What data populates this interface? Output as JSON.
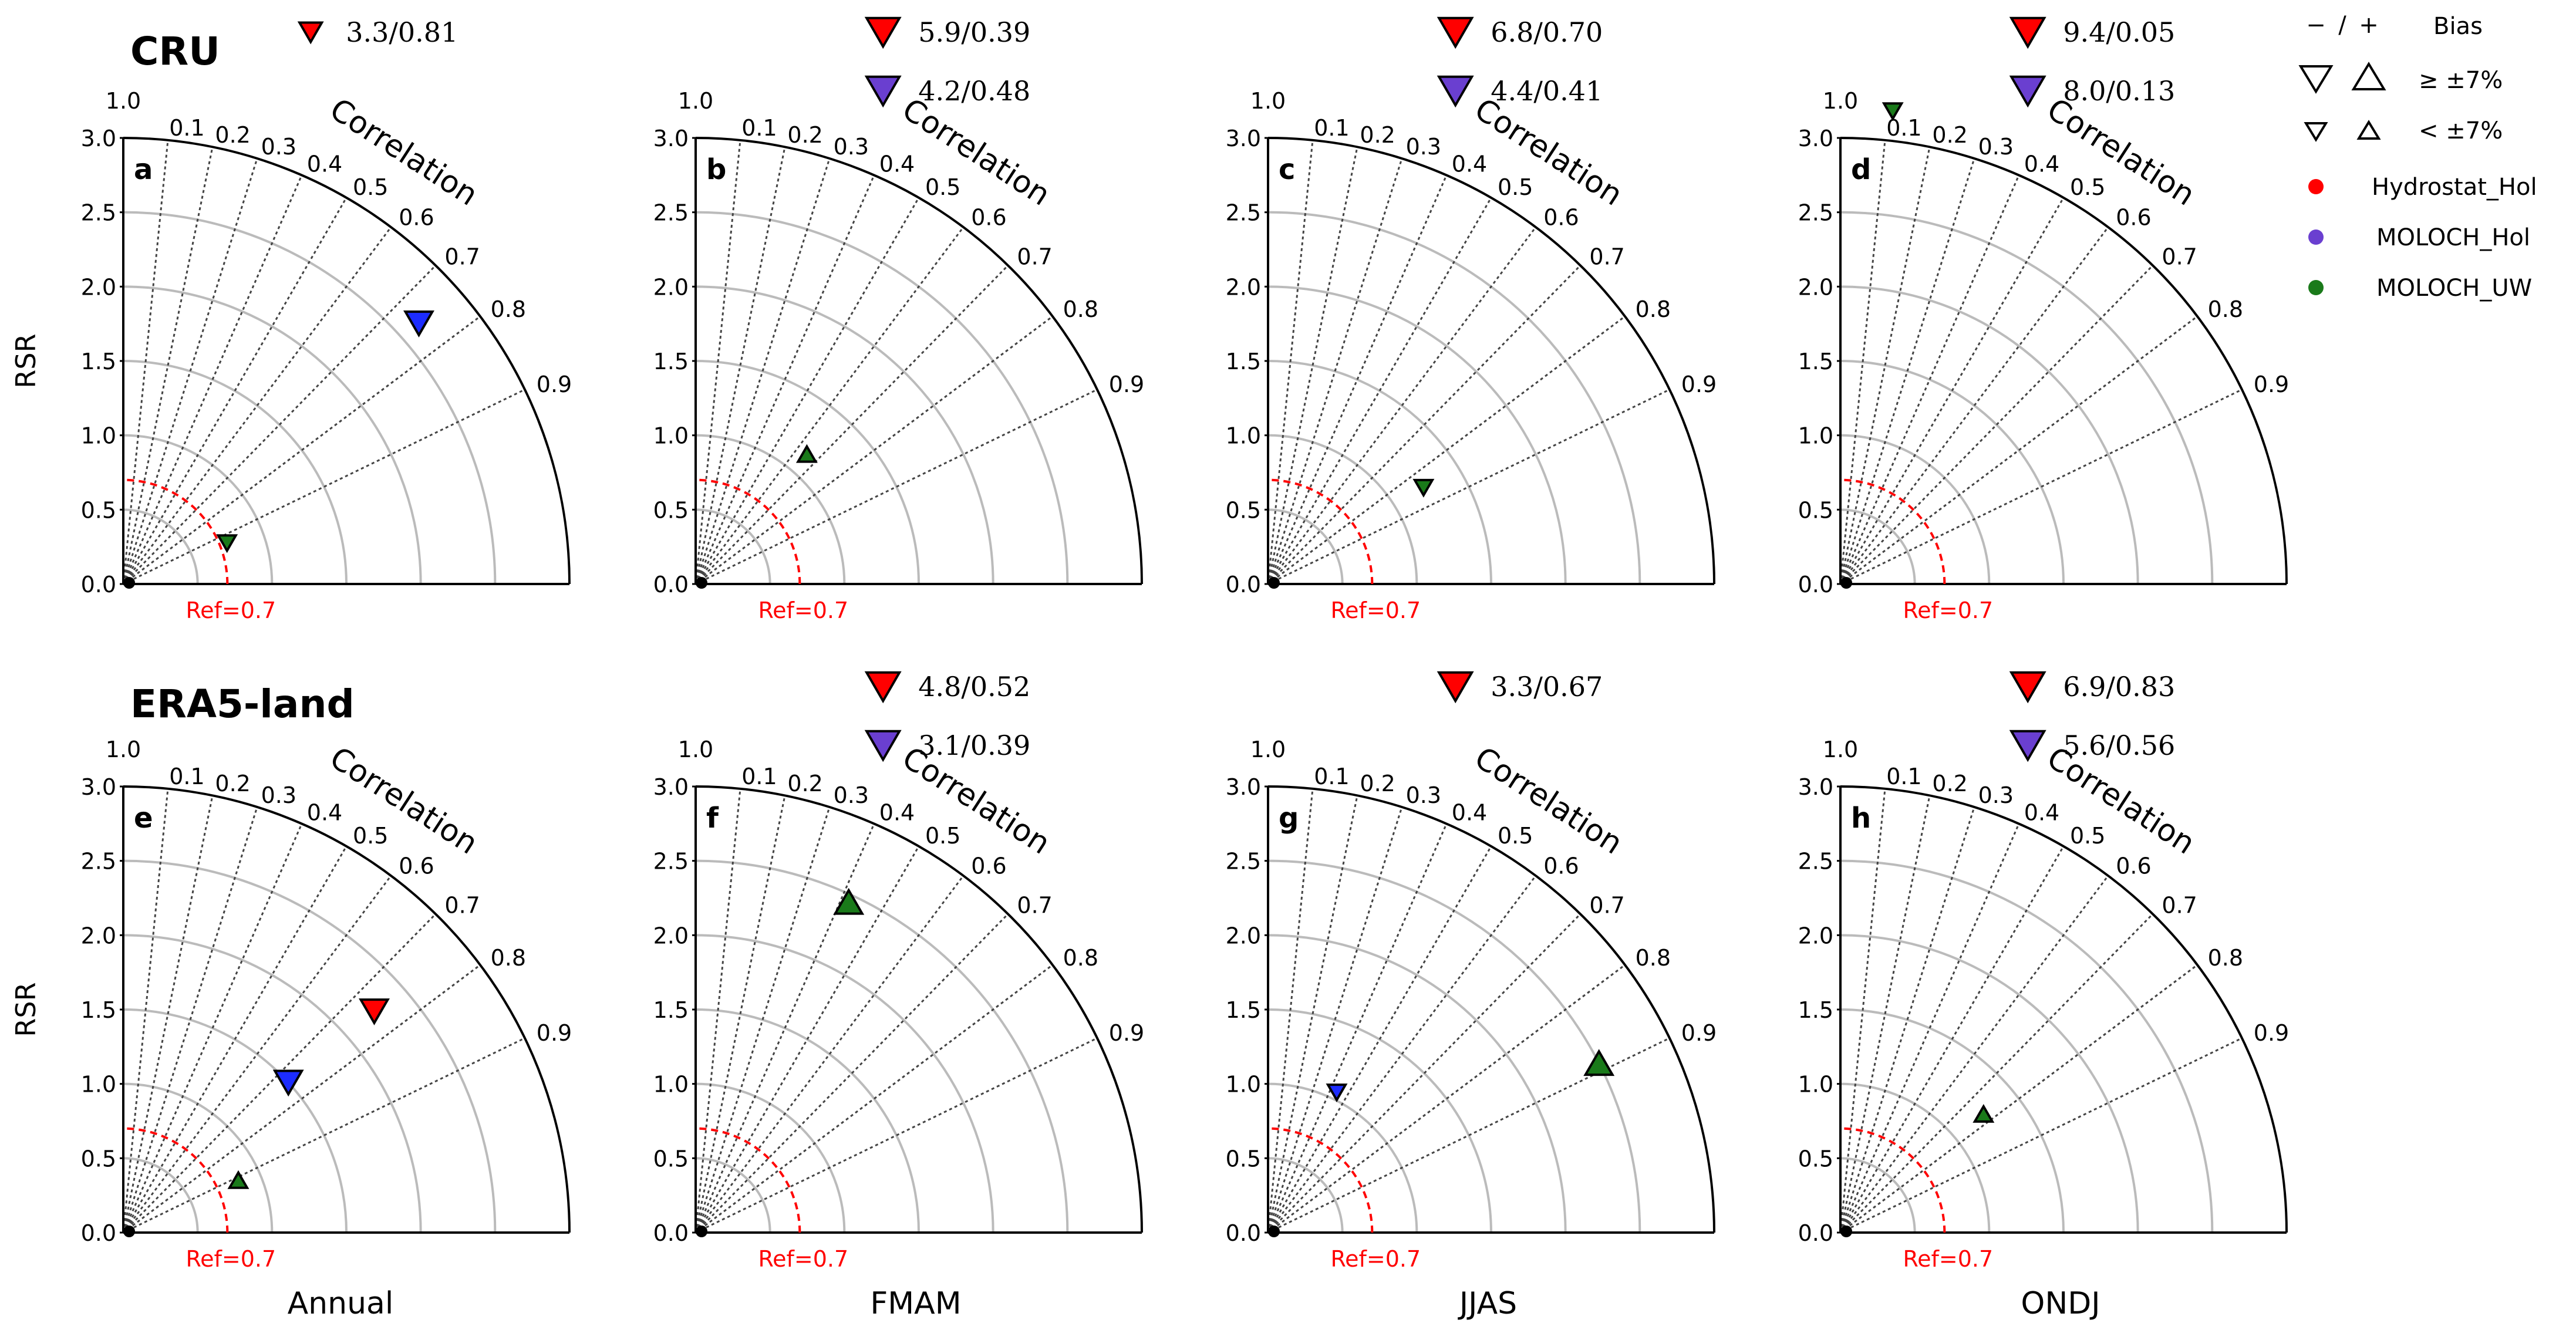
{
  "colors": {
    "hydrostat": "#ff0000",
    "moloch_hol": "#6a3fd0",
    "moloch_uw": "#1a7a1a",
    "blue_marker": "#1c2cff",
    "ref": "#ff0000",
    "grid": "#bbbbbb",
    "ray": "#444444",
    "frame": "#000000"
  },
  "common": {
    "rsr_label": "RSR",
    "correlation_label": "Correlation",
    "corner_top_label": "1.0",
    "ref_label": "Ref=0.7",
    "ref_value": 0.7,
    "rmax": 3.0,
    "r_ticks": [
      0.0,
      0.5,
      1.0,
      1.5,
      2.0,
      2.5,
      3.0
    ],
    "r_tick_labels": [
      "0.0",
      "0.5",
      "1.0",
      "1.5",
      "2.0",
      "2.5",
      "3.0"
    ],
    "corr_ticks": [
      0.9,
      0.8,
      0.7,
      0.6,
      0.5,
      0.4,
      0.3,
      0.2,
      0.1
    ],
    "corr_tick_labels": [
      "0.9",
      "0.8",
      "0.7",
      "0.6",
      "0.5",
      "0.4",
      "0.3",
      "0.2",
      "0.1"
    ]
  },
  "row_titles": [
    "CRU",
    "ERA5-land"
  ],
  "column_titles": [
    "Annual",
    "FMAM",
    "JJAS",
    "ONDJ"
  ],
  "legend": {
    "header_minus": "−",
    "header_slash": "/",
    "header_plus": "+",
    "header_bias": "Bias",
    "large_label": "≥ ±7%",
    "small_label": "< ±7%",
    "entries": [
      {
        "label": "Hydrostat_Hol",
        "color_key": "hydrostat"
      },
      {
        "label": "MOLOCH_Hol",
        "color_key": "moloch_hol"
      },
      {
        "label": "MOLOCH_UW",
        "color_key": "moloch_uw"
      }
    ]
  },
  "chart_data": [
    {
      "type": "scatter",
      "panel": "a",
      "row": 0,
      "col": 0,
      "outliers": [
        {
          "label": "3.3/0.81",
          "color_key": "hydrostat",
          "size": "small"
        }
      ],
      "points": [
        {
          "model": "MOLOCH_Hol",
          "color_key": "blue_marker",
          "corr": 0.75,
          "rsr": 2.65,
          "dir": "down",
          "size": "large"
        },
        {
          "model": "MOLOCH_UW",
          "color_key": "moloch_uw",
          "corr": 0.93,
          "rsr": 0.75,
          "dir": "down",
          "size": "small"
        }
      ]
    },
    {
      "type": "scatter",
      "panel": "b",
      "row": 0,
      "col": 1,
      "outliers": [
        {
          "label": "5.9/0.39",
          "color_key": "hydrostat",
          "size": "large"
        },
        {
          "label": "4.2/0.48",
          "color_key": "moloch_hol",
          "size": "large"
        }
      ],
      "points": [
        {
          "model": "MOLOCH_UW",
          "color_key": "moloch_uw",
          "corr": 0.65,
          "rsr": 1.15,
          "dir": "up",
          "size": "small"
        }
      ]
    },
    {
      "type": "scatter",
      "panel": "c",
      "row": 0,
      "col": 2,
      "outliers": [
        {
          "label": "6.8/0.70",
          "color_key": "hydrostat",
          "size": "large"
        },
        {
          "label": "4.4/0.41",
          "color_key": "moloch_hol",
          "size": "large"
        }
      ],
      "points": [
        {
          "model": "MOLOCH_UW",
          "color_key": "moloch_uw",
          "corr": 0.85,
          "rsr": 1.23,
          "dir": "down",
          "size": "small"
        }
      ]
    },
    {
      "type": "scatter",
      "panel": "d",
      "row": 0,
      "col": 3,
      "outliers": [
        {
          "label": "9.4/0.05",
          "color_key": "hydrostat",
          "size": "large"
        },
        {
          "label": "8.0/0.13",
          "color_key": "moloch_hol",
          "size": "large"
        }
      ],
      "points": [
        {
          "model": "MOLOCH_UW",
          "color_key": "moloch_uw",
          "corr": 0.11,
          "rsr": 3.2,
          "dir": "down",
          "size": "small"
        }
      ]
    },
    {
      "type": "scatter",
      "panel": "e",
      "row": 1,
      "col": 0,
      "outliers": [],
      "points": [
        {
          "model": "Hydrostat_Hol",
          "color_key": "hydrostat",
          "corr": 0.75,
          "rsr": 2.25,
          "dir": "down",
          "size": "large"
        },
        {
          "model": "MOLOCH_Hol",
          "color_key": "blue_marker",
          "corr": 0.74,
          "rsr": 1.5,
          "dir": "down",
          "size": "large"
        },
        {
          "model": "MOLOCH_UW",
          "color_key": "moloch_uw",
          "corr": 0.91,
          "rsr": 0.85,
          "dir": "up",
          "size": "small"
        }
      ]
    },
    {
      "type": "scatter",
      "panel": "f",
      "row": 1,
      "col": 1,
      "outliers": [
        {
          "label": "4.8/0.52",
          "color_key": "hydrostat",
          "size": "large"
        },
        {
          "label": "3.1/0.39",
          "color_key": "moloch_hol",
          "size": "large"
        }
      ],
      "points": [
        {
          "model": "MOLOCH_UW",
          "color_key": "moloch_uw",
          "corr": 0.42,
          "rsr": 2.45,
          "dir": "up",
          "size": "large"
        }
      ]
    },
    {
      "type": "scatter",
      "panel": "g",
      "row": 1,
      "col": 2,
      "outliers": [
        {
          "label": "3.3/0.67",
          "color_key": "hydrostat",
          "size": "large"
        }
      ],
      "points": [
        {
          "model": "MOLOCH_UW",
          "color_key": "moloch_uw",
          "corr": 0.89,
          "rsr": 2.5,
          "dir": "up",
          "size": "large"
        },
        {
          "model": "MOLOCH_Hol",
          "color_key": "blue_marker",
          "corr": 0.44,
          "rsr": 1.05,
          "dir": "down",
          "size": "small"
        }
      ]
    },
    {
      "type": "scatter",
      "panel": "h",
      "row": 1,
      "col": 3,
      "outliers": [
        {
          "label": "6.9/0.83",
          "color_key": "hydrostat",
          "size": "large"
        },
        {
          "label": "5.6/0.56",
          "color_key": "moloch_hol",
          "size": "large"
        }
      ],
      "points": [
        {
          "model": "MOLOCH_UW",
          "color_key": "moloch_uw",
          "corr": 0.77,
          "rsr": 1.25,
          "dir": "up",
          "size": "small"
        }
      ]
    }
  ]
}
